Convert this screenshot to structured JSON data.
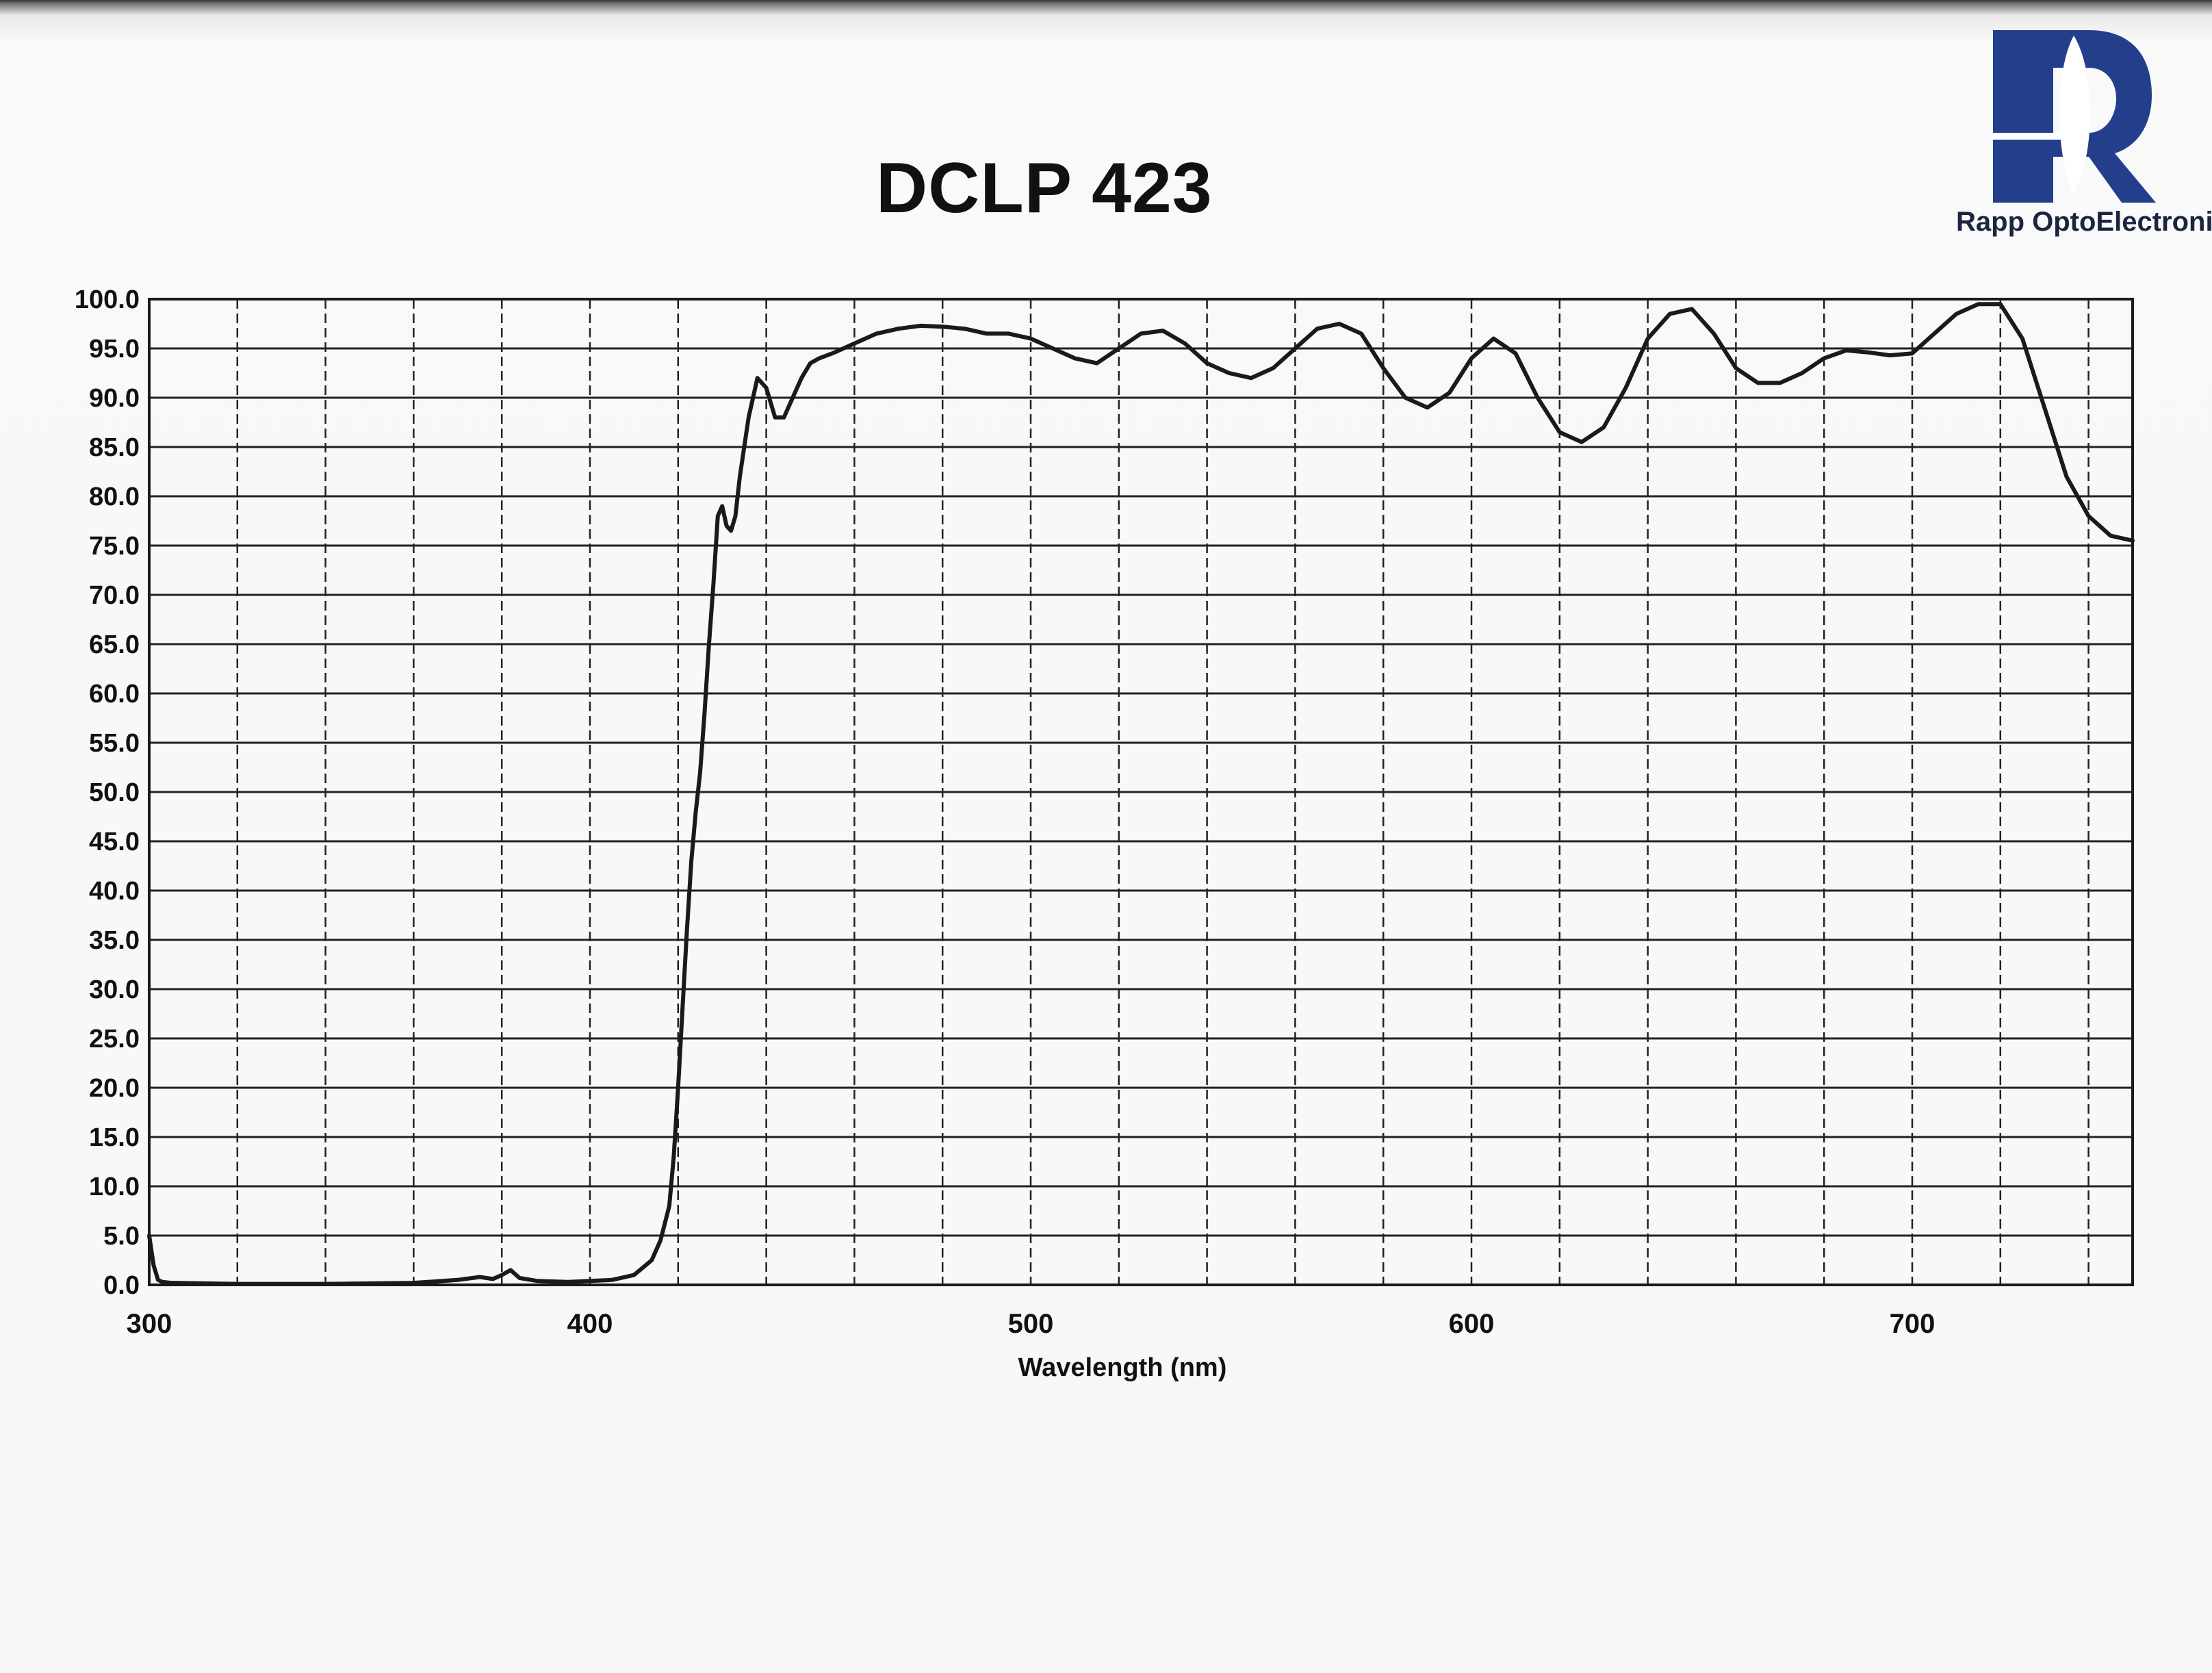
{
  "title": "DCLP 423",
  "logo": {
    "text": "Rapp OptoElectronic",
    "color": "#233f8c"
  },
  "chart_data": {
    "type": "line",
    "title": "DCLP 423",
    "xlabel": "Wavelength (nm)",
    "ylabel": "",
    "xlim": [
      300,
      750
    ],
    "ylim": [
      0,
      100
    ],
    "x_tick_labels": [
      "300",
      "400",
      "500",
      "600",
      "700"
    ],
    "y_tick_labels": [
      "100.0",
      "95.0",
      "90.0",
      "85.0",
      "80.0",
      "75.0",
      "70.0",
      "65.0",
      "60.0",
      "55.0",
      "50.0",
      "45.0",
      "40.0",
      "35.0",
      "30.0",
      "25.0",
      "20.0",
      "15.0",
      "10.0",
      "5.0",
      "0.0"
    ],
    "grid": true,
    "line_color": "#1a1a1a",
    "series": [
      {
        "x": [
          300,
          301,
          302,
          303,
          305,
          320,
          340,
          360,
          370,
          375,
          378,
          380,
          382,
          384,
          388,
          395,
          405,
          410,
          414,
          416,
          418,
          419,
          420,
          421,
          422,
          423,
          424,
          425,
          426,
          427,
          428,
          429,
          430,
          431,
          432,
          433,
          434,
          436,
          438,
          440,
          442,
          444,
          446,
          448,
          450,
          452,
          455,
          460,
          465,
          470,
          475,
          480,
          485,
          490,
          495,
          500,
          505,
          510,
          515,
          520,
          525,
          530,
          535,
          540,
          545,
          550,
          555,
          560,
          565,
          570,
          575,
          580,
          585,
          590,
          595,
          600,
          605,
          610,
          615,
          620,
          625,
          630,
          635,
          640,
          645,
          650,
          655,
          660,
          665,
          670,
          675,
          680,
          685,
          690,
          695,
          700,
          705,
          710,
          715,
          720,
          725,
          730,
          735,
          740,
          745,
          750
        ],
        "y": [
          5.0,
          2.0,
          0.5,
          0.3,
          0.2,
          0.1,
          0.1,
          0.2,
          0.5,
          0.8,
          0.6,
          1.0,
          1.5,
          0.7,
          0.4,
          0.3,
          0.5,
          1.0,
          2.5,
          4.5,
          8.0,
          13.0,
          20.0,
          28.0,
          36.0,
          43.0,
          48.0,
          52.0,
          58.0,
          65.0,
          71.0,
          78.0,
          79.0,
          77.0,
          76.5,
          78.0,
          82.0,
          88.0,
          92.0,
          91.0,
          88.0,
          88.0,
          90.0,
          92.0,
          93.5,
          94.0,
          94.5,
          95.5,
          96.5,
          97.0,
          97.3,
          97.2,
          97.0,
          96.5,
          96.5,
          96.0,
          95.0,
          94.0,
          93.5,
          95.0,
          96.5,
          96.8,
          95.5,
          93.5,
          92.5,
          92.0,
          93.0,
          95.0,
          97.0,
          97.5,
          96.5,
          93.0,
          90.0,
          89.0,
          90.5,
          94.0,
          96.0,
          94.5,
          90.0,
          86.5,
          85.5,
          87.0,
          91.0,
          96.0,
          98.5,
          99.0,
          96.5,
          93.0,
          91.5,
          91.5,
          92.5,
          94.0,
          94.8,
          94.6,
          94.3,
          94.5,
          96.5,
          98.5,
          99.5,
          99.5,
          96.0,
          89.0,
          82.0,
          78.0,
          76.0,
          75.5
        ]
      }
    ]
  }
}
